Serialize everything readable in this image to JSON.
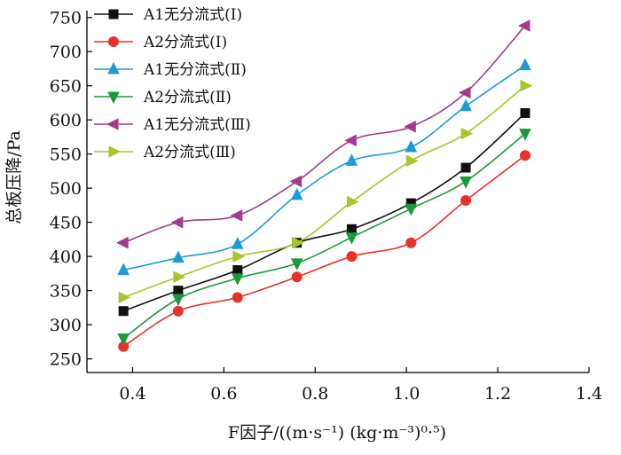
{
  "chart_data": {
    "type": "line",
    "xlabel": "F因子/((m·s⁻¹) (kg·m⁻³)⁰·⁵)",
    "ylabel": "总板压降/Pa",
    "xlim": [
      0.3,
      1.4
    ],
    "ylim": [
      230,
      760
    ],
    "x_ticks": [
      "0.4",
      "0.6",
      "0.8",
      "1.0",
      "1.2",
      "1.4"
    ],
    "y_ticks": [
      "250",
      "300",
      "350",
      "400",
      "450",
      "500",
      "550",
      "600",
      "650",
      "700",
      "750"
    ],
    "grid": false,
    "legend_position": "top-left",
    "x": [
      0.38,
      0.5,
      0.63,
      0.76,
      0.88,
      1.01,
      1.13,
      1.26
    ],
    "series": [
      {
        "name": "A1无分流式(Ⅰ)",
        "color": "#111111",
        "marker": "square",
        "values": [
          320,
          350,
          380,
          420,
          440,
          478,
          530,
          610
        ]
      },
      {
        "name": "A2分流式(Ⅰ)",
        "color": "#e8312a",
        "marker": "circle",
        "values": [
          268,
          320,
          340,
          370,
          400,
          420,
          482,
          548
        ]
      },
      {
        "name": "A1无分流式(Ⅱ)",
        "color": "#1e9ad6",
        "marker": "triangle-up",
        "values": [
          380,
          398,
          418,
          490,
          540,
          560,
          620,
          680
        ]
      },
      {
        "name": "A2分流式(Ⅱ)",
        "color": "#1a9a3c",
        "marker": "triangle-down",
        "values": [
          280,
          338,
          368,
          390,
          428,
          470,
          510,
          580
        ]
      },
      {
        "name": "A1无分流式(Ⅲ)",
        "color": "#a03c8a",
        "marker": "triangle-left",
        "values": [
          420,
          450,
          460,
          510,
          570,
          590,
          640,
          738
        ]
      },
      {
        "name": "A2分流式(Ⅲ)",
        "color": "#a6c62b",
        "marker": "triangle-right",
        "values": [
          340,
          370,
          400,
          420,
          480,
          540,
          580,
          650
        ]
      }
    ]
  }
}
